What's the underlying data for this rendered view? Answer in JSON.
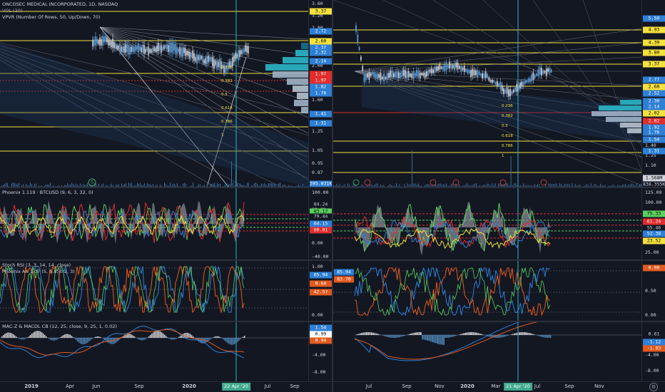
{
  "left": {
    "title": "ONCOSEC MEDICAL INCORPORATED, 1D, NASDAQ",
    "study_vol": "VOL (20)",
    "study_vpvr": "VPVR (Number Of Rows, 50, Up/Down, 70)",
    "price_ticks": [
      "3.60",
      "3.20",
      "2.80",
      "2.40",
      "2.00",
      "1.60",
      "1.25",
      "1.05",
      "0.95",
      "0.87"
    ],
    "price_labels": [
      {
        "text": "3.37",
        "bg": "#f5e13c",
        "fg": "#000000"
      },
      {
        "text": "2.72",
        "bg": "#2e7fd6",
        "fg": "#ffffff"
      },
      {
        "text": "2.60",
        "bg": "#f5e13c",
        "fg": "#000000"
      },
      {
        "text": "2.37",
        "bg": "#2e7fd6",
        "fg": "#ffffff"
      },
      {
        "text": "2.32",
        "bg": "#2e7fd6",
        "fg": "#ffffff"
      },
      {
        "text": "2.14",
        "bg": "#2e7fd6",
        "fg": "#ffffff"
      },
      {
        "text": "1.97",
        "bg": "#e22d2d",
        "fg": "#ffffff"
      },
      {
        "text": "1.97",
        "bg": "#e22d2d",
        "fg": "#ffffff"
      },
      {
        "text": "1.82",
        "bg": "#2e7fd6",
        "fg": "#ffffff"
      },
      {
        "text": "1.76",
        "bg": "#2e7fd6",
        "fg": "#ffffff"
      },
      {
        "text": "1.41",
        "bg": "#2e7fd6",
        "fg": "#ffffff"
      },
      {
        "text": "1.31",
        "bg": "#2e7fd6",
        "fg": "#ffffff"
      },
      {
        "text": "395.831K",
        "bg": "#2e7fd6",
        "fg": "#ffffff"
      }
    ],
    "fib_labels": [
      "0.236",
      "0.382",
      "0.5",
      "0.618",
      "0.786",
      "1"
    ],
    "phoenix_title": "Phoenix 1.119 · BTCUSD (9, 6, 3, 32, 0)",
    "phoenix_ticks": [
      "100.00",
      "60.00",
      "20.00",
      "0.00",
      "-40.00"
    ],
    "phoenix_labels": [
      {
        "text": "84.24",
        "bg": "#131722",
        "fg": "#d1d4dc"
      },
      {
        "text": "83.17",
        "bg": "#5ad15e",
        "fg": "#000000"
      },
      {
        "text": "79.44",
        "bg": "#131722",
        "fg": "#d1d4dc"
      },
      {
        "text": "64.15",
        "bg": "#2e7fd6",
        "fg": "#ffffff"
      },
      {
        "text": "60.01",
        "bg": "#e22d2d",
        "fg": "#ffffff"
      }
    ],
    "stoch_title": "Stoch RSI (3, 3, 14, 14, close)",
    "stoch_title2": "Phoenix Ari 1.07 (5, 0.8, 0.2, 3)",
    "stoch_ticks": [
      "1.00",
      "0.50",
      "0.00"
    ],
    "stoch_labels": [
      {
        "text": "65.94",
        "bg": "#2e7fd6",
        "fg": "#ffffff"
      },
      {
        "text": "0.64",
        "bg": "#e05a1f",
        "fg": "#ffffff"
      },
      {
        "text": "42.57",
        "bg": "#e05a1f",
        "fg": "#ffffff"
      }
    ],
    "macd_title": "MAC-Z & MACDL CB (12, 25, close, 9, 25, 1, 0.02)",
    "macd_ticks": [
      "-4.00",
      "-8.00"
    ],
    "macd_labels": [
      {
        "text": "1.54",
        "bg": "#2e7fd6",
        "fg": "#ffffff"
      },
      {
        "text": "0.99",
        "bg": "#ffffff",
        "fg": "#000000"
      },
      {
        "text": "0.94",
        "bg": "#e05a1f",
        "fg": "#ffffff"
      }
    ],
    "time_labels": [
      "2019",
      "Apr",
      "Jun",
      "Sep",
      "2020",
      "Jul",
      "Sep"
    ],
    "date_box": "22 Apr '20"
  },
  "right": {
    "price_ticks": [
      "1.40",
      "1.25",
      "1.10"
    ],
    "price_labels": [
      {
        "text": "5.50",
        "bg": "#2e7fd6",
        "fg": "#ffffff"
      },
      {
        "text": "4.93",
        "bg": "#f5e13c",
        "fg": "#000000"
      },
      {
        "text": "4.39",
        "bg": "#f5e13c",
        "fg": "#000000"
      },
      {
        "text": "3.80",
        "bg": "#f5e13c",
        "fg": "#000000"
      },
      {
        "text": "3.37",
        "bg": "#f5e13c",
        "fg": "#000000"
      },
      {
        "text": "2.77",
        "bg": "#2e7fd6",
        "fg": "#ffffff"
      },
      {
        "text": "2.60",
        "bg": "#f5e13c",
        "fg": "#000000"
      },
      {
        "text": "2.52",
        "bg": "#2e7fd6",
        "fg": "#ffffff"
      },
      {
        "text": "2.30",
        "bg": "#2e7fd6",
        "fg": "#ffffff"
      },
      {
        "text": "2.14",
        "bg": "#2e7fd6",
        "fg": "#ffffff"
      },
      {
        "text": "2.02",
        "bg": "#f5e13c",
        "fg": "#000000"
      },
      {
        "text": "2.02",
        "bg": "#e22d2d",
        "fg": "#ffffff"
      },
      {
        "text": "1.92",
        "bg": "#2e7fd6",
        "fg": "#ffffff"
      },
      {
        "text": "1.76",
        "bg": "#2e7fd6",
        "fg": "#ffffff"
      },
      {
        "text": "1.54",
        "bg": "#2e7fd6",
        "fg": "#ffffff"
      },
      {
        "text": "1.31",
        "bg": "#2e7fd6",
        "fg": "#ffffff"
      },
      {
        "text": "1.568M",
        "bg": "#d1d4dc",
        "fg": "#000000"
      },
      {
        "text": "838.355K",
        "bg": "#131722",
        "fg": "#d1d4dc"
      }
    ],
    "fib_labels": [
      "0.236",
      "0.382",
      "0.5",
      "0.618",
      "0.786",
      "1"
    ],
    "phoenix_ticks": [
      "125.00",
      "100.00",
      "75.00",
      "50.00",
      "25.00"
    ],
    "phoenix_labels": [
      {
        "text": "75.33",
        "bg": "#5ad15e",
        "fg": "#000000"
      },
      {
        "text": "61.24",
        "bg": "#e22d2d",
        "fg": "#ffffff"
      },
      {
        "text": "55.46",
        "bg": "#131722",
        "fg": "#d1d4dc"
      },
      {
        "text": "52.38",
        "bg": "#2e7fd6",
        "fg": "#ffffff"
      },
      {
        "text": "23.52",
        "bg": "#f5e13c",
        "fg": "#000000"
      }
    ],
    "stoch_ticks": [
      "1.00",
      "0.50",
      "0.00"
    ],
    "stoch_labels": [
      {
        "text": "0.98",
        "bg": "#e05a1f",
        "fg": "#ffffff"
      }
    ],
    "stoch_values": [
      {
        "text": "85.94",
        "bg": "#2e7fd6",
        "fg": "#ffffff"
      },
      {
        "text": "83.70",
        "bg": "#e05a1f",
        "fg": "#ffffff"
      }
    ],
    "macd_ticks": [
      "-4.00",
      "-8.00"
    ],
    "macd_labels": [
      {
        "text": "0.61",
        "bg": "#131722",
        "fg": "#d1d4dc"
      },
      {
        "text": "-1.12",
        "bg": "#2e7fd6",
        "fg": "#ffffff"
      },
      {
        "text": "-1.93",
        "bg": "#e05a1f",
        "fg": "#ffffff"
      }
    ],
    "time_labels": [
      "Jul",
      "Sep",
      "Nov",
      "2020",
      "Mar",
      "Jul",
      "Sep",
      "Nov"
    ],
    "date_box": "21 Apr '20"
  },
  "colors": {
    "bg": "#131722",
    "yellow": "#f5e13c",
    "red": "#e22d2d",
    "blue": "#2e7fd6",
    "green": "#5ad15e",
    "orange": "#e05a1f",
    "cyan": "#2bb6c9"
  }
}
